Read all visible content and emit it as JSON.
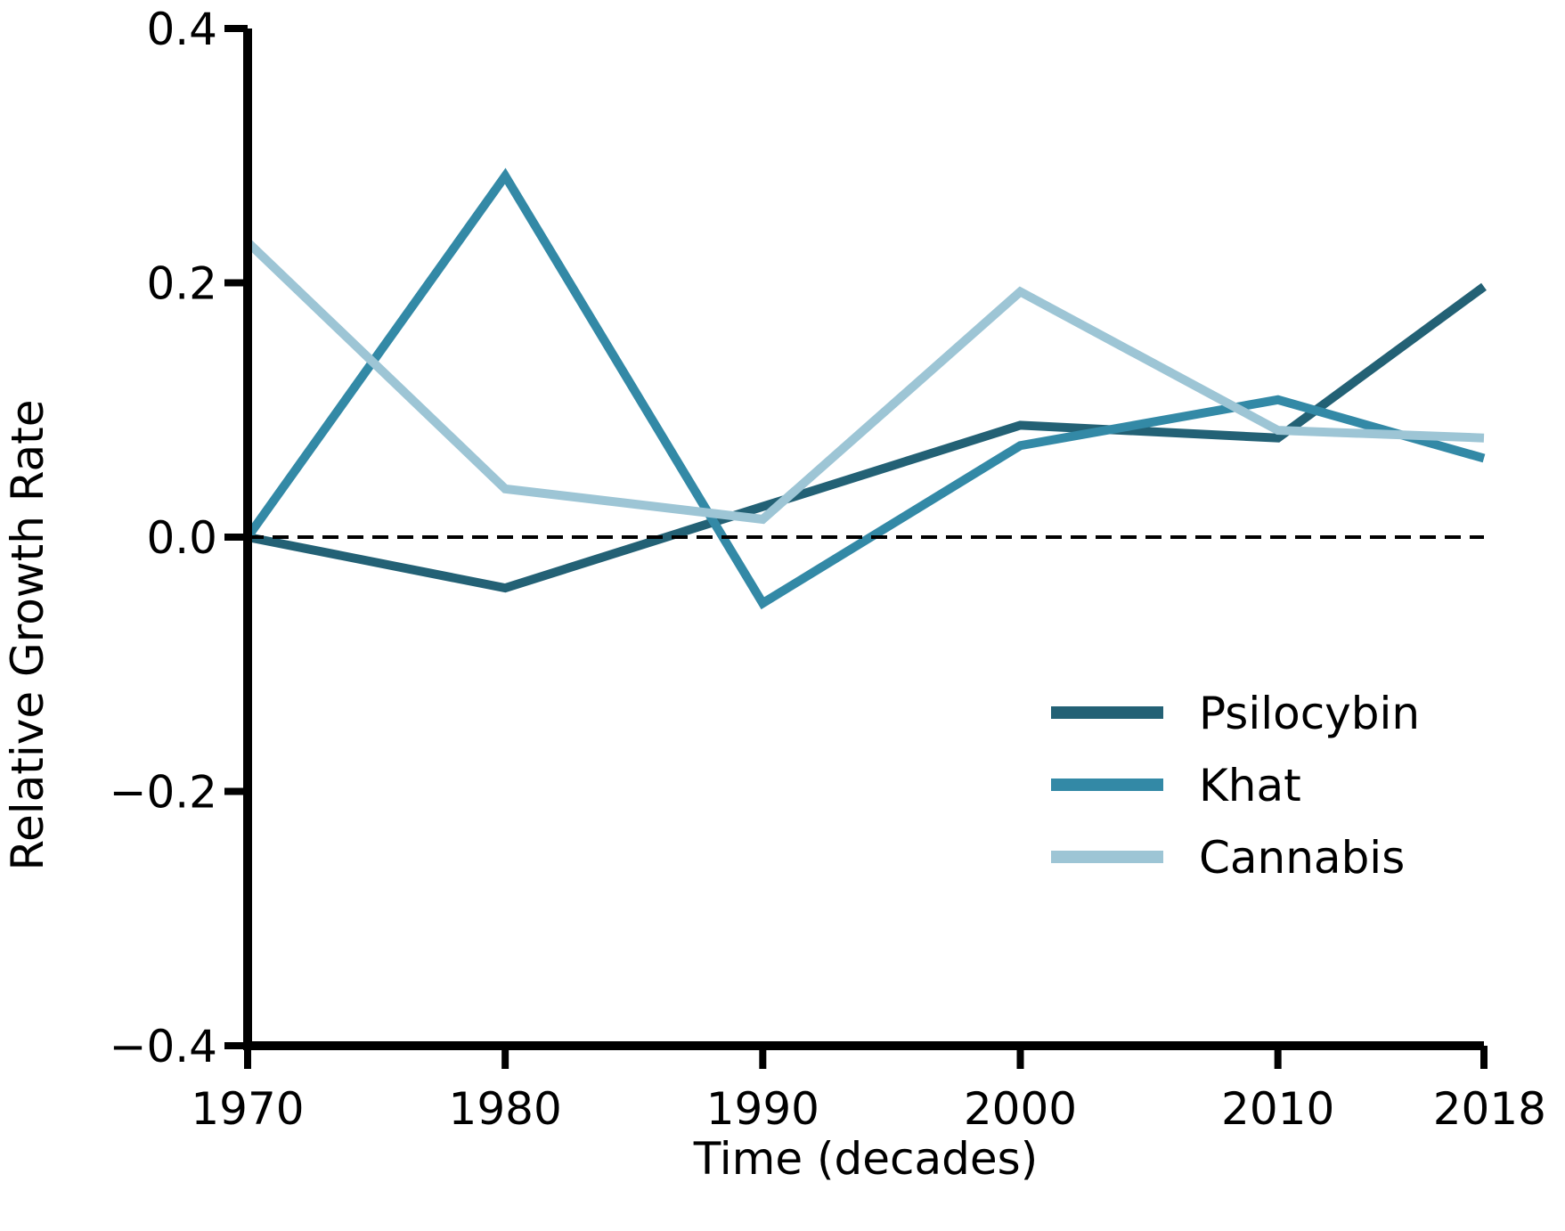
{
  "chart_data": {
    "type": "line",
    "xlabel": "Time (decades)",
    "ylabel": "Relative Growth Rate",
    "x": [
      1970,
      1980,
      1990,
      2000,
      2010,
      2018
    ],
    "x_tick_labels": [
      "1970",
      "1980",
      "1990",
      "2000",
      "2010",
      "2018"
    ],
    "xlim": [
      1970,
      2018
    ],
    "ylim": [
      -0.4,
      0.4
    ],
    "y_ticks": [
      -0.4,
      -0.2,
      0.0,
      0.2,
      0.4
    ],
    "y_tick_labels": [
      "−0.4",
      "−0.2",
      "0.0",
      "0.2",
      "0.4"
    ],
    "reference_line": {
      "y": 0.0,
      "style": "dashed",
      "color": "#000000"
    },
    "grid": false,
    "legend_position": "center-right",
    "series": [
      {
        "name": "Psilocybin",
        "color": "#236175",
        "values": [
          0.0,
          -0.04,
          0.024,
          0.088,
          0.078,
          0.197
        ]
      },
      {
        "name": "Khat",
        "color": "#3389a6",
        "values": [
          0.0,
          0.284,
          -0.052,
          0.072,
          0.108,
          0.062
        ]
      },
      {
        "name": "Cannabis",
        "color": "#9dc5d5",
        "values": [
          0.232,
          0.038,
          0.014,
          0.193,
          0.084,
          0.078
        ]
      }
    ]
  }
}
